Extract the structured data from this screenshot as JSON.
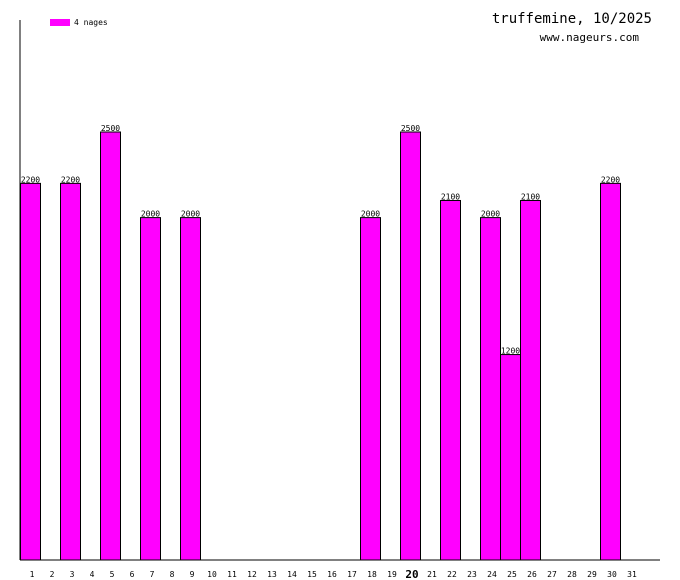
{
  "header": {
    "title": "truffemine, 10/2025",
    "subtitle": "www.nageurs.com"
  },
  "legend": {
    "label": "4 nages",
    "color": "#ff00ff",
    "placement": "top-left"
  },
  "chart_data": {
    "type": "bar",
    "title": "truffemine, 10/2025",
    "xlabel": "",
    "ylabel": "",
    "categories": [
      "1",
      "2",
      "3",
      "4",
      "5",
      "6",
      "7",
      "8",
      "9",
      "10",
      "11",
      "12",
      "13",
      "14",
      "15",
      "16",
      "17",
      "18",
      "19",
      "20",
      "21",
      "22",
      "23",
      "24",
      "25",
      "26",
      "27",
      "28",
      "29",
      "30",
      "31"
    ],
    "highlighted_category": "20",
    "series": [
      {
        "name": "4 nages",
        "color": "#ff00ff",
        "values": [
          2200,
          null,
          2200,
          null,
          2500,
          null,
          2000,
          null,
          2000,
          null,
          null,
          null,
          null,
          null,
          null,
          null,
          null,
          2000,
          null,
          2500,
          null,
          2100,
          null,
          2000,
          1200,
          2100,
          null,
          null,
          null,
          2200,
          null
        ]
      }
    ],
    "ylim": [
      0,
      2800
    ],
    "grid": false,
    "bar_color": "#ff00ff",
    "bar_outline": "#000000",
    "axis_color": "#000000"
  }
}
